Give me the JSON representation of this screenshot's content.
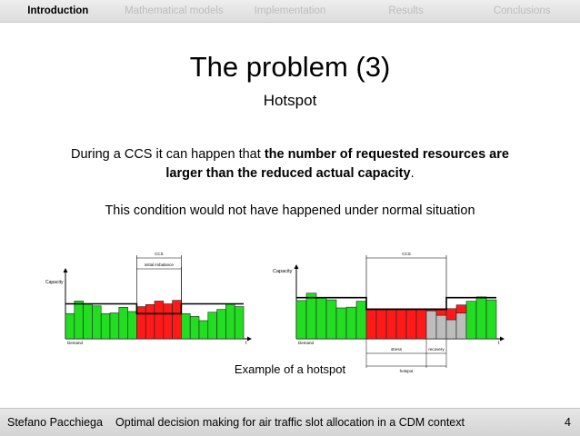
{
  "nav": {
    "items": [
      "Introduction",
      "Mathematical models",
      "Implementation",
      "Results",
      "Conclusions"
    ],
    "active_index": 0
  },
  "slide": {
    "title": "The problem (3)",
    "subtitle": "Hotspot",
    "para1_pre": "During a CCS it can happen that ",
    "para1_bold": "the number of requested resources are larger than the reduced actual capacity",
    "para1_post": ".",
    "para2": "This condition would not have happened under normal situation",
    "caption": "Example of a hotspot"
  },
  "chart_data": [
    {
      "type": "bar",
      "labels": {
        "ccs": "CCS",
        "imbalance": "initial imbalance",
        "capacity": "Capacity",
        "demand": "Demand",
        "t": "t"
      },
      "ylim": [
        0,
        10
      ],
      "capacity": 5.0,
      "reduced_capacity": 3.6,
      "ccs_range": [
        8,
        13
      ],
      "bars": [
        {
          "v": 3.6,
          "c": "green"
        },
        {
          "v": 5.4,
          "c": "green"
        },
        {
          "v": 5.0,
          "c": "green"
        },
        {
          "v": 4.7,
          "c": "green"
        },
        {
          "v": 3.6,
          "c": "green"
        },
        {
          "v": 3.7,
          "c": "green"
        },
        {
          "v": 4.5,
          "c": "green"
        },
        {
          "v": 3.9,
          "c": "green"
        },
        {
          "v": 4.6,
          "c": "red"
        },
        {
          "v": 4.9,
          "c": "red"
        },
        {
          "v": 5.4,
          "c": "red"
        },
        {
          "v": 5.0,
          "c": "red"
        },
        {
          "v": 5.5,
          "c": "red"
        },
        {
          "v": 3.6,
          "c": "green"
        },
        {
          "v": 3.2,
          "c": "green"
        },
        {
          "v": 2.6,
          "c": "green"
        },
        {
          "v": 3.8,
          "c": "green"
        },
        {
          "v": 4.2,
          "c": "green"
        },
        {
          "v": 5.0,
          "c": "green"
        },
        {
          "v": 4.6,
          "c": "green"
        }
      ]
    },
    {
      "type": "bar",
      "labels": {
        "ccs": "CCS",
        "capacity": "Capacity",
        "demand": "Demand",
        "t": "t",
        "stress": "stress",
        "recovery": "recovery",
        "hotspot": "hotspot"
      },
      "ylim": [
        0,
        10
      ],
      "capacity": 5.6,
      "reduced_capacity": 4.0,
      "ccs_range": [
        7,
        15
      ],
      "bars": [
        {
          "v": 5.2,
          "c": "green"
        },
        {
          "v": 6.2,
          "c": "green"
        },
        {
          "v": 5.6,
          "c": "green"
        },
        {
          "v": 5.3,
          "c": "green"
        },
        {
          "v": 4.2,
          "c": "green"
        },
        {
          "v": 4.3,
          "c": "green"
        },
        {
          "v": 5.1,
          "c": "green"
        },
        {
          "v": 4.1,
          "c": "red"
        },
        {
          "v": 4.1,
          "c": "red"
        },
        {
          "v": 4.1,
          "c": "red"
        },
        {
          "v": 4.1,
          "c": "red"
        },
        {
          "v": 4.1,
          "c": "red"
        },
        {
          "v": 4.1,
          "c": "red"
        },
        {
          "v": 3.8,
          "c": "gray",
          "red_to": 4.1
        },
        {
          "v": 3.2,
          "c": "gray",
          "red_to": 4.1
        },
        {
          "v": 2.6,
          "c": "gray",
          "red_to": 4.1
        },
        {
          "v": 3.5,
          "c": "gray",
          "red_to": 4.6
        },
        {
          "v": 5.1,
          "c": "green"
        },
        {
          "v": 5.7,
          "c": "green"
        },
        {
          "v": 5.3,
          "c": "green"
        }
      ]
    }
  ]
}
